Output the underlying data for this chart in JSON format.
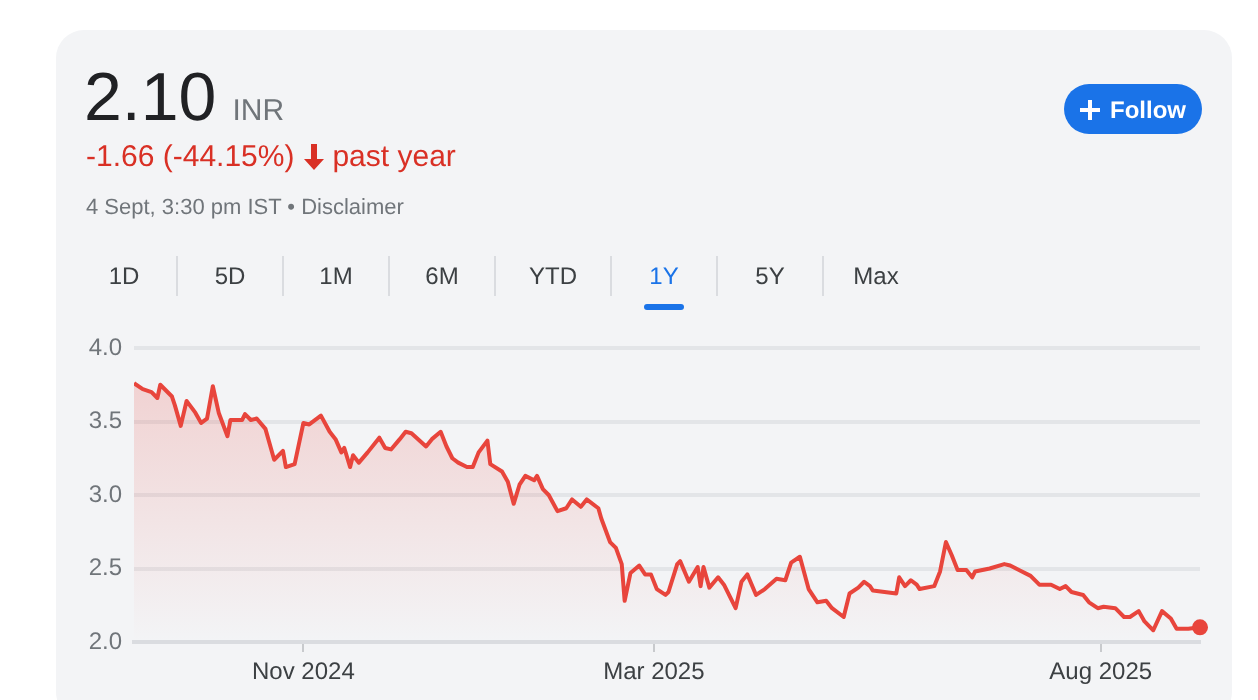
{
  "chart_data": {
    "type": "area",
    "title": "2.10 INR",
    "subtitle": "-1.66 (-44.15%) past year",
    "annotations": [
      "4 Sept, 3:30 pm IST • Disclaimer",
      "Follow",
      "1D",
      "5D",
      "1M",
      "6M",
      "YTD",
      "1Y",
      "5Y",
      "Max"
    ],
    "x": [
      "2024-09-04",
      "2024-09-07",
      "2024-09-10",
      "2024-09-12",
      "2024-09-13",
      "2024-09-17",
      "2024-09-18",
      "2024-09-20",
      "2024-09-22",
      "2024-09-25",
      "2024-09-27",
      "2024-09-29",
      "2024-10-01",
      "2024-10-03",
      "2024-10-06",
      "2024-10-07",
      "2024-10-11",
      "2024-10-12",
      "2024-10-14",
      "2024-10-16",
      "2024-10-19",
      "2024-10-22",
      "2024-10-25",
      "2024-10-26",
      "2024-10-29",
      "2024-11-01",
      "2024-11-03",
      "2024-11-07",
      "2024-11-10",
      "2024-11-12",
      "2024-11-14",
      "2024-11-15",
      "2024-11-17",
      "2024-11-18",
      "2024-11-20",
      "2024-11-23",
      "2024-11-27",
      "2024-11-29",
      "2024-12-01",
      "2024-12-04",
      "2024-12-06",
      "2024-12-08",
      "2024-12-13",
      "2024-12-15",
      "2024-12-18",
      "2024-12-20",
      "2024-12-22",
      "2024-12-24",
      "2024-12-27",
      "2024-12-29",
      "2024-12-31",
      "2025-01-03",
      "2025-01-04",
      "2025-01-08",
      "2025-01-10",
      "2025-01-12",
      "2025-01-14",
      "2025-01-16",
      "2025-01-19",
      "2025-01-20",
      "2025-01-22",
      "2025-01-24",
      "2025-01-27",
      "2025-01-30",
      "2025-02-01",
      "2025-02-04",
      "2025-02-06",
      "2025-02-10",
      "2025-02-11",
      "2025-02-14",
      "2025-02-16",
      "2025-02-18",
      "2025-02-19",
      "2025-02-21",
      "2025-02-24",
      "2025-02-26",
      "2025-02-28",
      "2025-03-02",
      "2025-03-05",
      "2025-03-06",
      "2025-03-09",
      "2025-03-10",
      "2025-03-13",
      "2025-03-16",
      "2025-03-17",
      "2025-03-18",
      "2025-03-20",
      "2025-03-23",
      "2025-03-25",
      "2025-03-29",
      "2025-03-31",
      "2025-04-02",
      "2025-04-05",
      "2025-04-08",
      "2025-04-12",
      "2025-04-15",
      "2025-04-17",
      "2025-04-20",
      "2025-04-23",
      "2025-04-26",
      "2025-04-29",
      "2025-05-01",
      "2025-05-05",
      "2025-05-07",
      "2025-05-10",
      "2025-05-12",
      "2025-05-14",
      "2025-05-15",
      "2025-05-19",
      "2025-05-23",
      "2025-05-24",
      "2025-05-26",
      "2025-05-28",
      "2025-05-30",
      "2025-05-31",
      "2025-06-05",
      "2025-06-07",
      "2025-06-09",
      "2025-06-11",
      "2025-06-13",
      "2025-06-16",
      "2025-06-18",
      "2025-06-19",
      "2025-06-24",
      "2025-06-29",
      "2025-07-01",
      "2025-07-04",
      "2025-07-08",
      "2025-07-11",
      "2025-07-15",
      "2025-07-18",
      "2025-07-20",
      "2025-07-22",
      "2025-07-26",
      "2025-07-28",
      "2025-07-31",
      "2025-08-02",
      "2025-08-06",
      "2025-08-09",
      "2025-08-11",
      "2025-08-14",
      "2025-08-16",
      "2025-08-18",
      "2025-08-19",
      "2025-08-22",
      "2025-08-25",
      "2025-08-27",
      "2025-08-31",
      "2025-09-04"
    ],
    "series": [
      {
        "color": "#e8453c",
        "values": [
          3.76,
          3.72,
          3.7,
          3.66,
          3.75,
          3.67,
          3.61,
          3.47,
          3.64,
          3.56,
          3.49,
          3.52,
          3.74,
          3.56,
          3.4,
          3.51,
          3.51,
          3.55,
          3.51,
          3.52,
          3.45,
          3.24,
          3.3,
          3.19,
          3.21,
          3.49,
          3.48,
          3.54,
          3.43,
          3.38,
          3.29,
          3.32,
          3.19,
          3.27,
          3.22,
          3.29,
          3.39,
          3.32,
          3.31,
          3.38,
          3.43,
          3.42,
          3.33,
          3.38,
          3.43,
          3.33,
          3.25,
          3.22,
          3.19,
          3.19,
          3.29,
          3.37,
          3.21,
          3.16,
          3.09,
          2.94,
          3.07,
          3.13,
          3.1,
          3.13,
          3.04,
          3.0,
          2.89,
          2.91,
          2.97,
          2.92,
          2.97,
          2.91,
          2.84,
          2.68,
          2.64,
          2.53,
          2.28,
          2.47,
          2.52,
          2.46,
          2.46,
          2.36,
          2.32,
          2.34,
          2.53,
          2.55,
          2.41,
          2.51,
          2.38,
          2.51,
          2.37,
          2.44,
          2.39,
          2.23,
          2.41,
          2.46,
          2.32,
          2.36,
          2.43,
          2.42,
          2.54,
          2.58,
          2.36,
          2.27,
          2.28,
          2.23,
          2.17,
          2.33,
          2.37,
          2.41,
          2.38,
          2.35,
          2.34,
          2.33,
          2.44,
          2.38,
          2.42,
          2.39,
          2.36,
          2.38,
          2.48,
          2.68,
          2.59,
          2.49,
          2.49,
          2.44,
          2.48,
          2.5,
          2.53,
          2.52,
          2.49,
          2.45,
          2.39,
          2.39,
          2.36,
          2.38,
          2.34,
          2.32,
          2.27,
          2.23,
          2.24,
          2.23,
          2.17,
          2.17,
          2.21,
          2.14,
          2.1,
          2.08,
          2.21,
          2.16,
          2.09,
          2.09,
          2.1
        ]
      }
    ],
    "xlim": [
      "2024-09-04",
      "2025-09-04"
    ],
    "xticks": [
      {
        "value": "2024-11-01",
        "label": "Nov 2024"
      },
      {
        "value": "2025-03-01",
        "label": "Mar 2025"
      },
      {
        "value": "2025-08-01",
        "label": "Aug 2025"
      }
    ],
    "ylim": [
      2.0,
      4.0
    ],
    "yticks": [
      {
        "value": 2,
        "label": "2.0"
      },
      {
        "value": 2.5,
        "label": "2.5"
      },
      {
        "value": 3,
        "label": "3.0"
      },
      {
        "value": 3.5,
        "label": "3.5"
      },
      {
        "value": 4,
        "label": "4.0"
      }
    ],
    "grid": "y",
    "legend": false,
    "marker": "none",
    "line_style": "solid"
  }
}
